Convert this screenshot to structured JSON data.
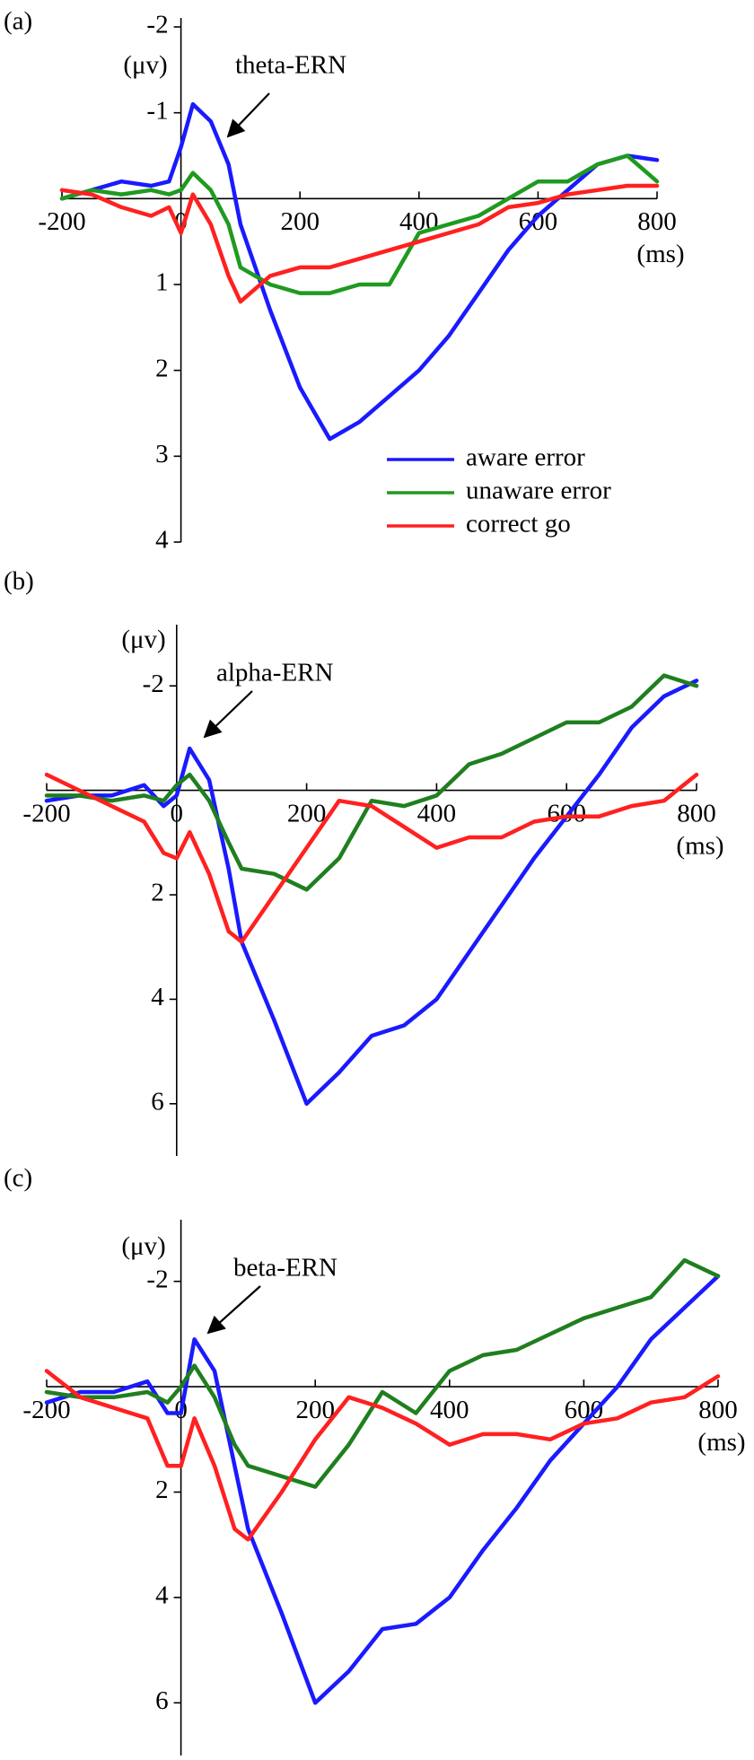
{
  "chart_data": [
    {
      "type": "line",
      "panel_label": "(a)",
      "annotation": "theta-ERN",
      "y_label": "(μv)",
      "x_label": "(ms)",
      "y_inverted": true,
      "legend": "lower right",
      "xlim": [
        -200,
        800
      ],
      "xticks": [
        -200,
        0,
        200,
        400,
        600,
        800
      ],
      "ylim": [
        -2,
        4
      ],
      "yticks": [
        -2,
        -1,
        1,
        2,
        3,
        4
      ],
      "x": [
        -200,
        -150,
        -100,
        -50,
        -20,
        0,
        20,
        50,
        80,
        100,
        150,
        200,
        250,
        300,
        350,
        400,
        450,
        500,
        550,
        600,
        650,
        700,
        750,
        800
      ],
      "series": [
        {
          "name": "aware error",
          "color": "#1a1aff",
          "values": [
            0,
            -0.1,
            -0.2,
            -0.15,
            -0.2,
            -0.6,
            -1.1,
            -0.9,
            -0.4,
            0.3,
            1.3,
            2.2,
            2.8,
            2.6,
            2.3,
            2.0,
            1.6,
            1.1,
            0.6,
            0.2,
            -0.1,
            -0.4,
            -0.5,
            -0.45
          ]
        },
        {
          "name": "unaware error",
          "color": "#1f9a1f",
          "values": [
            0,
            -0.1,
            -0.05,
            -0.1,
            -0.05,
            -0.1,
            -0.3,
            -0.1,
            0.3,
            0.8,
            1.0,
            1.1,
            1.1,
            1.0,
            1.0,
            0.4,
            0.3,
            0.2,
            0.0,
            -0.2,
            -0.2,
            -0.4,
            -0.5,
            -0.2
          ]
        },
        {
          "name": "correct go",
          "color": "#ff2020",
          "values": [
            -0.1,
            -0.05,
            0.1,
            0.2,
            0.1,
            0.4,
            -0.05,
            0.3,
            0.9,
            1.2,
            0.9,
            0.8,
            0.8,
            0.7,
            0.6,
            0.5,
            0.4,
            0.3,
            0.1,
            0.05,
            -0.05,
            -0.1,
            -0.15,
            -0.15
          ]
        }
      ]
    },
    {
      "type": "line",
      "panel_label": "(b)",
      "annotation": "alpha-ERN",
      "y_label": "(μv)",
      "x_label": "(ms)",
      "y_inverted": true,
      "xlim": [
        -200,
        800
      ],
      "xticks": [
        -200,
        0,
        200,
        400,
        600,
        800
      ],
      "ylim": [
        -3,
        7
      ],
      "yticks": [
        -2,
        2,
        4,
        6
      ],
      "x": [
        -200,
        -150,
        -100,
        -50,
        -20,
        0,
        20,
        50,
        80,
        100,
        150,
        200,
        250,
        300,
        350,
        400,
        450,
        500,
        550,
        600,
        650,
        700,
        750,
        800
      ],
      "series": [
        {
          "color": "#1a1aff",
          "values": [
            0.2,
            0.1,
            0.1,
            -0.1,
            0.3,
            0.1,
            -0.8,
            -0.2,
            1.5,
            2.9,
            4.4,
            6.0,
            5.4,
            4.7,
            4.5,
            4.0,
            3.1,
            2.2,
            1.3,
            0.5,
            -0.3,
            -1.2,
            -1.8,
            -2.1
          ]
        },
        {
          "color": "#1f7f1f",
          "values": [
            0.1,
            0.1,
            0.2,
            0.1,
            0.2,
            -0.1,
            -0.3,
            0.2,
            1.0,
            1.5,
            1.6,
            1.9,
            1.3,
            0.2,
            0.3,
            0.1,
            -0.5,
            -0.7,
            -1.0,
            -1.3,
            -1.3,
            -1.6,
            -2.2,
            -2.0
          ]
        },
        {
          "color": "#ff2020",
          "values": [
            -0.3,
            0.0,
            0.3,
            0.6,
            1.2,
            1.3,
            0.8,
            1.6,
            2.7,
            2.9,
            2.0,
            1.1,
            0.2,
            0.3,
            0.7,
            1.1,
            0.9,
            0.9,
            0.6,
            0.5,
            0.5,
            0.3,
            0.2,
            -0.3
          ]
        }
      ]
    },
    {
      "type": "line",
      "panel_label": "(c)",
      "annotation": "beta-ERN",
      "y_label": "(μv)",
      "x_label": "(ms)",
      "y_inverted": true,
      "xlim": [
        -200,
        800
      ],
      "xticks": [
        -200,
        0,
        200,
        400,
        600,
        800
      ],
      "ylim": [
        -3,
        7
      ],
      "yticks": [
        -2,
        2,
        4,
        6
      ],
      "x": [
        -200,
        -150,
        -100,
        -50,
        -20,
        0,
        20,
        50,
        80,
        100,
        150,
        200,
        250,
        300,
        350,
        400,
        450,
        500,
        550,
        600,
        650,
        700,
        750,
        800
      ],
      "series": [
        {
          "color": "#1a1aff",
          "values": [
            0.3,
            0.1,
            0.1,
            -0.1,
            0.5,
            0.5,
            -0.9,
            -0.3,
            1.5,
            2.7,
            4.3,
            6.0,
            5.4,
            4.6,
            4.5,
            4.0,
            3.1,
            2.3,
            1.4,
            0.7,
            0.0,
            -0.9,
            -1.5,
            -2.1
          ]
        },
        {
          "color": "#1f7f1f",
          "values": [
            0.1,
            0.2,
            0.2,
            0.1,
            0.3,
            0.0,
            -0.4,
            0.2,
            1.1,
            1.5,
            1.7,
            1.9,
            1.1,
            0.1,
            0.5,
            -0.3,
            -0.6,
            -0.7,
            -1.0,
            -1.3,
            -1.5,
            -1.7,
            -2.4,
            -2.1
          ]
        },
        {
          "color": "#ff2020",
          "values": [
            -0.3,
            0.2,
            0.4,
            0.6,
            1.5,
            1.5,
            0.6,
            1.5,
            2.7,
            2.9,
            2.0,
            1.0,
            0.2,
            0.4,
            0.7,
            1.1,
            0.9,
            0.9,
            1.0,
            0.7,
            0.6,
            0.3,
            0.2,
            -0.2
          ]
        }
      ]
    }
  ]
}
